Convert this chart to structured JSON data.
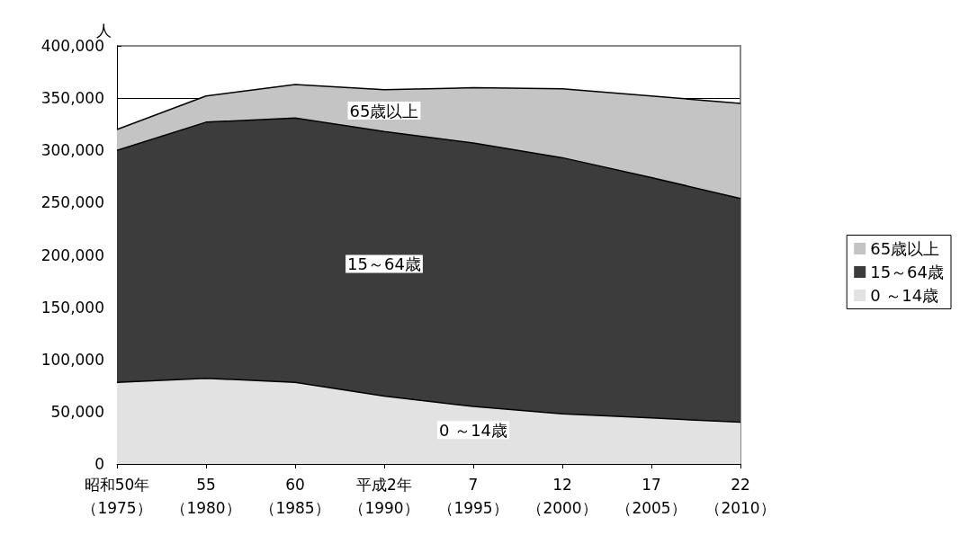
{
  "chart_data": {
    "type": "area",
    "stacked": true,
    "ylabel": "人",
    "categories": [
      "昭和50年（1975）",
      "55（1980）",
      "60（1985）",
      "平成2年（1990）",
      "7（1995）",
      "12（2000）",
      "17（2005）",
      "22（2010）"
    ],
    "series": [
      {
        "name": "0 ～14歳",
        "color": "#e2e2e2",
        "values": [
          78000,
          82000,
          78000,
          65000,
          55000,
          48000,
          44000,
          40000
        ]
      },
      {
        "name": "15～64歳",
        "color": "#3c3c3c",
        "values": [
          222000,
          245000,
          253000,
          253000,
          252000,
          245000,
          230000,
          214000
        ]
      },
      {
        "name": "65歳以上",
        "color": "#c4c4c4",
        "values": [
          20000,
          25000,
          32000,
          40000,
          53000,
          66000,
          78000,
          91000
        ]
      }
    ],
    "ylim": [
      0,
      400000
    ],
    "yticks": [
      0,
      {
        "value": 50000,
        "label": "50,000"
      },
      {
        "value": 100000,
        "label": "100,000"
      },
      {
        "value": 150000,
        "label": "150,000"
      },
      {
        "value": 200000,
        "label": "200,000"
      },
      {
        "value": 250000,
        "label": "250,000"
      },
      {
        "value": 300000,
        "label": "300,000"
      },
      {
        "value": 350000,
        "label": "350,000"
      },
      {
        "value": 400000,
        "label": "400,000"
      }
    ],
    "grid": "y",
    "legend": "right"
  }
}
